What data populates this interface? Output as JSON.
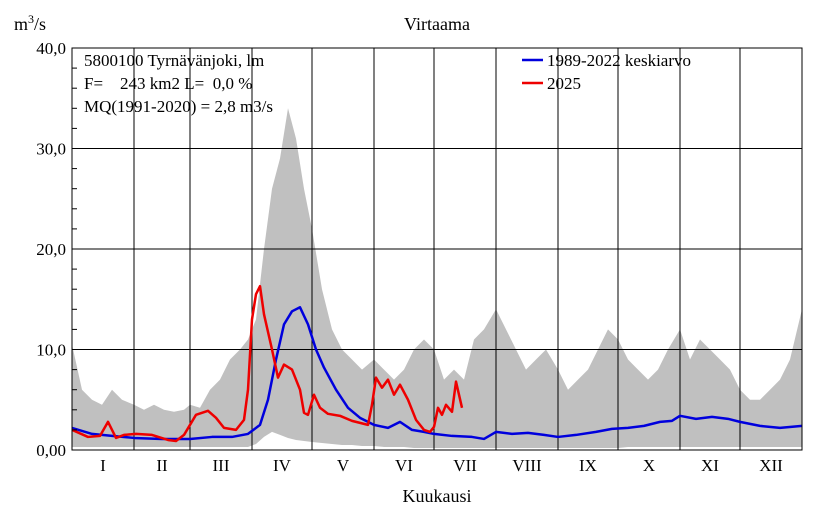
{
  "chart_data": {
    "type": "line",
    "title": "Virtaama",
    "ylabel": "m3/s",
    "xlabel": "Kuukausi",
    "ylim": [
      0,
      40
    ],
    "xlim": [
      0,
      365
    ],
    "yticks": [
      0,
      10,
      20,
      30,
      40
    ],
    "ytick_labels": [
      "0,00",
      "10,0",
      "20,0",
      "30,0",
      "40,0"
    ],
    "months": [
      "I",
      "II",
      "III",
      "IV",
      "V",
      "VI",
      "VII",
      "VIII",
      "IX",
      "X",
      "XI",
      "XII"
    ],
    "month_starts": [
      0,
      31,
      59,
      90,
      120,
      151,
      181,
      212,
      243,
      273,
      304,
      334
    ],
    "grid": true,
    "legend_position": "top-right",
    "info_lines": [
      "5800100 Tyrnävänjoki, lm",
      "F=    243 km2 L=  0,0 %",
      "MQ(1991-2020) = 2,8 m3/s"
    ],
    "range_band": {
      "color": "#c0c0c0",
      "x": [
        0,
        5,
        10,
        15,
        20,
        25,
        31,
        36,
        41,
        46,
        51,
        56,
        59,
        64,
        69,
        74,
        79,
        84,
        88,
        92,
        96,
        100,
        104,
        108,
        112,
        116,
        120,
        125,
        130,
        135,
        140,
        145,
        151,
        156,
        161,
        166,
        171,
        176,
        181,
        186,
        191,
        196,
        201,
        206,
        212,
        217,
        222,
        227,
        232,
        237,
        243,
        248,
        253,
        258,
        263,
        268,
        273,
        278,
        283,
        288,
        293,
        298,
        304,
        309,
        314,
        319,
        324,
        329,
        334,
        339,
        344,
        349,
        354,
        359,
        365
      ],
      "max": [
        10.5,
        6,
        5,
        4.5,
        6,
        5,
        4.5,
        4,
        4.5,
        4,
        3.8,
        4,
        4.5,
        4.2,
        6,
        7,
        9,
        10,
        11,
        13,
        20,
        26,
        29,
        34,
        31,
        26,
        22,
        16,
        12,
        10,
        9,
        8,
        9,
        8,
        7,
        8,
        10,
        11,
        10,
        7,
        8,
        7,
        11,
        12,
        14,
        12,
        10,
        8,
        9,
        10,
        8,
        6,
        7,
        8,
        10,
        12,
        11,
        9,
        8,
        7,
        8,
        10,
        12,
        9,
        11,
        10,
        9,
        8,
        6,
        5,
        5,
        6,
        7,
        9,
        14
      ],
      "min": [
        0.3,
        0.3,
        0.3,
        0.3,
        0.3,
        0.3,
        0.3,
        0.3,
        0.3,
        0.3,
        0.3,
        0.3,
        0.3,
        0.3,
        0.3,
        0.3,
        0.3,
        0.3,
        0.3,
        0.6,
        1.3,
        1.8,
        1.5,
        1.2,
        1.0,
        0.9,
        0.8,
        0.7,
        0.6,
        0.5,
        0.5,
        0.4,
        0.4,
        0.3,
        0.3,
        0.3,
        0.2,
        0.2,
        0.2,
        0.2,
        0.2,
        0.2,
        0.2,
        0.2,
        0.2,
        0.2,
        0.2,
        0.2,
        0.2,
        0.2,
        0.2,
        0.2,
        0.2,
        0.2,
        0.2,
        0.2,
        0.2,
        0.3,
        0.3,
        0.3,
        0.3,
        0.3,
        0.3,
        0.3,
        0.3,
        0.3,
        0.3,
        0.3,
        0.3,
        0.3,
        0.3,
        0.3,
        0.3,
        0.3,
        0.3
      ]
    },
    "series": [
      {
        "name": "1989-2022 keskiarvo",
        "color": "#0000dd",
        "x": [
          0,
          10,
          20,
          31,
          45,
          59,
          70,
          80,
          88,
          94,
          98,
          102,
          106,
          110,
          114,
          118,
          122,
          126,
          132,
          138,
          144,
          151,
          158,
          164,
          170,
          176,
          181,
          190,
          200,
          206,
          212,
          220,
          228,
          236,
          243,
          252,
          262,
          270,
          278,
          286,
          294,
          300,
          304,
          312,
          320,
          328,
          334,
          344,
          354,
          365
        ],
        "values": [
          2.2,
          1.6,
          1.4,
          1.2,
          1.1,
          1.1,
          1.3,
          1.3,
          1.6,
          2.5,
          5,
          9,
          12.5,
          13.8,
          14.2,
          12.5,
          10,
          8.2,
          6,
          4.2,
          3.2,
          2.5,
          2.2,
          2.8,
          2,
          1.8,
          1.6,
          1.4,
          1.3,
          1.1,
          1.8,
          1.6,
          1.7,
          1.5,
          1.3,
          1.5,
          1.8,
          2.1,
          2.2,
          2.4,
          2.8,
          2.9,
          3.4,
          3.1,
          3.3,
          3.1,
          2.8,
          2.4,
          2.2,
          2.4
        ]
      },
      {
        "name": "2025",
        "color": "#ee0000",
        "x": [
          0,
          8,
          14,
          18,
          22,
          26,
          32,
          40,
          48,
          52,
          56,
          62,
          68,
          72,
          76,
          82,
          86,
          88,
          90,
          92,
          94,
          96,
          100,
          103,
          106,
          110,
          114,
          116,
          118,
          121,
          124,
          128,
          134,
          140,
          148,
          150,
          152,
          155,
          158,
          161,
          164,
          168,
          172,
          176,
          179,
          181,
          183,
          185,
          187,
          190,
          192,
          195
        ],
        "values": [
          2,
          1.3,
          1.4,
          2.8,
          1.2,
          1.5,
          1.6,
          1.5,
          1.0,
          0.9,
          1.5,
          3.5,
          3.9,
          3.2,
          2.2,
          2,
          3,
          6,
          13,
          15.5,
          16.3,
          13.5,
          10,
          7.2,
          8.5,
          8,
          6,
          3.7,
          3.5,
          5.5,
          4.2,
          3.6,
          3.4,
          2.9,
          2.5,
          4.5,
          7.2,
          6.2,
          7.0,
          5.5,
          6.5,
          5,
          3,
          2,
          1.8,
          2.3,
          4.2,
          3.5,
          4.5,
          3.8,
          6.8,
          4.2
        ]
      }
    ]
  }
}
